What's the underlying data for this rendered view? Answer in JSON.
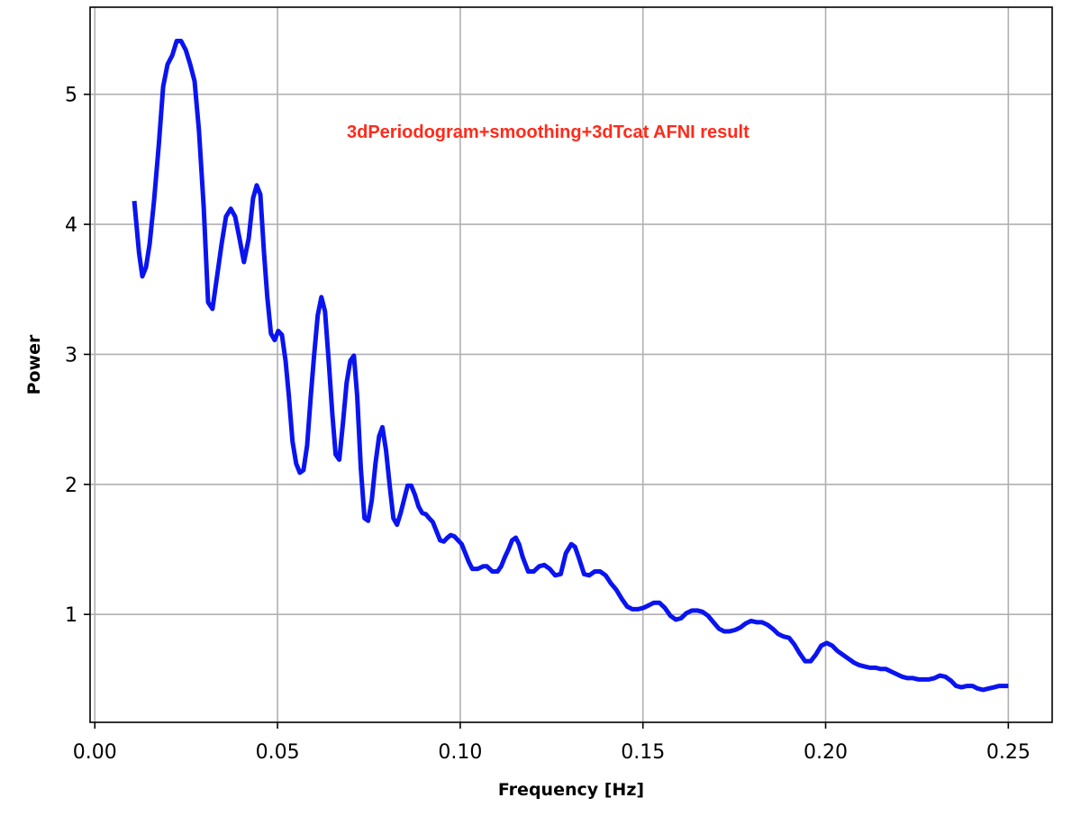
{
  "chart_data": {
    "type": "line",
    "annotation": "3dPeriodogram+smoothing+3dTcat AFNI result",
    "xlabel": "Frequency [Hz]",
    "ylabel": "Power",
    "xlim": [
      -0.0013,
      0.262
    ],
    "ylim": [
      0.17,
      5.67
    ],
    "xticks": [
      {
        "value": 0,
        "label": "0.00"
      },
      0.05,
      {
        "value": 0.1,
        "label": "0.10"
      },
      0.15,
      {
        "value": 0.2,
        "label": "0.20"
      },
      0.25
    ],
    "yticks": [
      1,
      2,
      3,
      4,
      5
    ],
    "grid": true,
    "x": [
      0.0108,
      0.0121,
      0.013,
      0.014,
      0.015,
      0.0162,
      0.0175,
      0.0187,
      0.0199,
      0.0212,
      0.0224,
      0.0236,
      0.0249,
      0.0261,
      0.0273,
      0.0285,
      0.0298,
      0.031,
      0.0322,
      0.0335,
      0.0347,
      0.0359,
      0.0372,
      0.0384,
      0.0396,
      0.0408,
      0.0421,
      0.0433,
      0.0443,
      0.0453,
      0.0463,
      0.0472,
      0.0482,
      0.0492,
      0.0502,
      0.0512,
      0.0522,
      0.0531,
      0.0541,
      0.0551,
      0.0561,
      0.0571,
      0.0581,
      0.0591,
      0.06,
      0.061,
      0.062,
      0.063,
      0.064,
      0.065,
      0.0659,
      0.0669,
      0.0679,
      0.0689,
      0.0699,
      0.0709,
      0.0718,
      0.0728,
      0.0738,
      0.0748,
      0.0758,
      0.0768,
      0.0778,
      0.0787,
      0.0797,
      0.0807,
      0.0817,
      0.0827,
      0.0837,
      0.0846,
      0.0856,
      0.0866,
      0.0876,
      0.0886,
      0.0896,
      0.0906,
      0.0915,
      0.0925,
      0.0935,
      0.0945,
      0.0955,
      0.0965,
      0.0974,
      0.0984,
      0.0994,
      0.1004,
      0.1014,
      0.1024,
      0.1033,
      0.1048,
      0.1063,
      0.1073,
      0.1088,
      0.1102,
      0.1112,
      0.1122,
      0.1132,
      0.1142,
      0.1152,
      0.1161,
      0.1171,
      0.1186,
      0.1201,
      0.1216,
      0.123,
      0.1245,
      0.126,
      0.1275,
      0.1289,
      0.1304,
      0.1314,
      0.1324,
      0.1339,
      0.1353,
      0.1368,
      0.1383,
      0.1398,
      0.1412,
      0.1427,
      0.1442,
      0.1457,
      0.1471,
      0.1486,
      0.1501,
      0.1516,
      0.153,
      0.1545,
      0.156,
      0.1575,
      0.159,
      0.1604,
      0.1619,
      0.1634,
      0.1649,
      0.1663,
      0.1678,
      0.1693,
      0.1708,
      0.1722,
      0.1737,
      0.1752,
      0.1767,
      0.1781,
      0.1796,
      0.1811,
      0.1826,
      0.1841,
      0.1855,
      0.187,
      0.1885,
      0.19,
      0.1914,
      0.1929,
      0.1944,
      0.1959,
      0.1973,
      0.1988,
      0.2003,
      0.2018,
      0.2032,
      0.2047,
      0.2062,
      0.2077,
      0.2092,
      0.2106,
      0.2121,
      0.2136,
      0.2151,
      0.2165,
      0.218,
      0.2195,
      0.221,
      0.2224,
      0.2239,
      0.2254,
      0.2269,
      0.2283,
      0.2298,
      0.2313,
      0.2328,
      0.2343,
      0.2357,
      0.2372,
      0.2387,
      0.2402,
      0.2416,
      0.2431,
      0.2446,
      0.2461,
      0.2475,
      0.25
    ],
    "series": [
      {
        "color": "#0a14f0",
        "values": [
          4.18,
          3.78,
          3.6,
          3.67,
          3.85,
          4.18,
          4.61,
          5.06,
          5.23,
          5.3,
          5.41,
          5.41,
          5.34,
          5.23,
          5.1,
          4.72,
          4.13,
          3.4,
          3.35,
          3.61,
          3.85,
          4.06,
          4.12,
          4.06,
          3.89,
          3.71,
          3.89,
          4.2,
          4.3,
          4.23,
          3.78,
          3.44,
          3.16,
          3.11,
          3.18,
          3.15,
          2.95,
          2.68,
          2.33,
          2.16,
          2.09,
          2.11,
          2.3,
          2.68,
          2.99,
          3.3,
          3.44,
          3.33,
          2.95,
          2.54,
          2.23,
          2.19,
          2.47,
          2.78,
          2.95,
          2.99,
          2.68,
          2.12,
          1.74,
          1.72,
          1.88,
          2.16,
          2.37,
          2.44,
          2.26,
          1.99,
          1.74,
          1.69,
          1.78,
          1.88,
          1.99,
          1.99,
          1.92,
          1.83,
          1.78,
          1.77,
          1.74,
          1.71,
          1.64,
          1.57,
          1.56,
          1.59,
          1.61,
          1.6,
          1.57,
          1.54,
          1.47,
          1.4,
          1.35,
          1.35,
          1.37,
          1.37,
          1.33,
          1.33,
          1.37,
          1.44,
          1.5,
          1.57,
          1.59,
          1.54,
          1.44,
          1.33,
          1.33,
          1.37,
          1.38,
          1.35,
          1.3,
          1.31,
          1.47,
          1.54,
          1.52,
          1.44,
          1.31,
          1.3,
          1.33,
          1.33,
          1.3,
          1.24,
          1.19,
          1.12,
          1.06,
          1.04,
          1.04,
          1.05,
          1.07,
          1.09,
          1.09,
          1.05,
          0.99,
          0.96,
          0.97,
          1.01,
          1.03,
          1.03,
          1.02,
          0.99,
          0.94,
          0.89,
          0.87,
          0.87,
          0.88,
          0.9,
          0.93,
          0.95,
          0.94,
          0.94,
          0.92,
          0.89,
          0.85,
          0.83,
          0.82,
          0.77,
          0.7,
          0.64,
          0.64,
          0.69,
          0.76,
          0.78,
          0.76,
          0.72,
          0.69,
          0.66,
          0.63,
          0.61,
          0.6,
          0.59,
          0.59,
          0.58,
          0.58,
          0.56,
          0.54,
          0.52,
          0.51,
          0.51,
          0.5,
          0.5,
          0.5,
          0.51,
          0.53,
          0.52,
          0.49,
          0.45,
          0.44,
          0.45,
          0.45,
          0.43,
          0.42,
          0.43,
          0.44,
          0.45,
          0.45
        ]
      }
    ]
  }
}
